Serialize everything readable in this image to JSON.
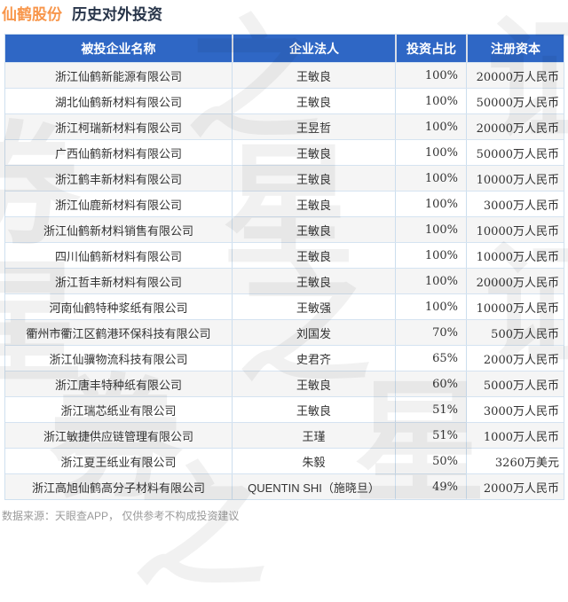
{
  "title": {
    "company": "仙鹤股份",
    "section": "历史对外投资"
  },
  "watermark": {
    "text": "证券之星"
  },
  "footer": {
    "source_note": "数据来源：天眼查APP， 仅供参考不构成投资建议"
  },
  "colors": {
    "header_bg": "#2F67C5",
    "title_accent": "#F8964B",
    "title_dark": "#273449",
    "row_alt_bg": "#F5F5F5",
    "grid_line": "#CCDEEE",
    "footer_text": "#9A9A9A"
  },
  "chart_data": {
    "type": "table",
    "title": "仙鹤股份 历史对外投资",
    "columns": [
      "被投企业名称",
      "企业法人",
      "投资占比",
      "注册资本"
    ],
    "rows": [
      [
        "浙江仙鹤新能源有限公司",
        "王敏良",
        "100%",
        "20000万人民币"
      ],
      [
        "湖北仙鹤新材料有限公司",
        "王敏良",
        "100%",
        "50000万人民币"
      ],
      [
        "浙江柯瑞新材料有限公司",
        "王昱哲",
        "100%",
        "20000万人民币"
      ],
      [
        "广西仙鹤新材料有限公司",
        "王敏良",
        "100%",
        "50000万人民币"
      ],
      [
        "浙江鹤丰新材料有限公司",
        "王敏良",
        "100%",
        "10000万人民币"
      ],
      [
        "浙江仙鹿新材料有限公司",
        "王敏良",
        "100%",
        "3000万人民币"
      ],
      [
        "浙江仙鹤新材料销售有限公司",
        "王敏良",
        "100%",
        "10000万人民币"
      ],
      [
        "四川仙鹤新材料有限公司",
        "王敏良",
        "100%",
        "10000万人民币"
      ],
      [
        "浙江哲丰新材料有限公司",
        "王敏良",
        "100%",
        "20000万人民币"
      ],
      [
        "河南仙鹤特种浆纸有限公司",
        "王敏强",
        "100%",
        "10000万人民币"
      ],
      [
        "衢州市衢江区鹤港环保科技有限公司",
        "刘国发",
        "70%",
        "500万人民币"
      ],
      [
        "浙江仙骥物流科技有限公司",
        "史君齐",
        "65%",
        "2000万人民币"
      ],
      [
        "浙江唐丰特种纸有限公司",
        "王敏良",
        "60%",
        "5000万人民币"
      ],
      [
        "浙江瑞芯纸业有限公司",
        "王敏良",
        "51%",
        "3000万人民币"
      ],
      [
        "浙江敏捷供应链管理有限公司",
        "王瑾",
        "51%",
        "1000万人民币"
      ],
      [
        "浙江夏王纸业有限公司",
        "朱毅",
        "50%",
        "3260万美元"
      ],
      [
        "浙江高旭仙鹤高分子材料有限公司",
        "QUENTIN SHI（施晓旦）",
        "49%",
        "2000万人民币"
      ]
    ]
  }
}
